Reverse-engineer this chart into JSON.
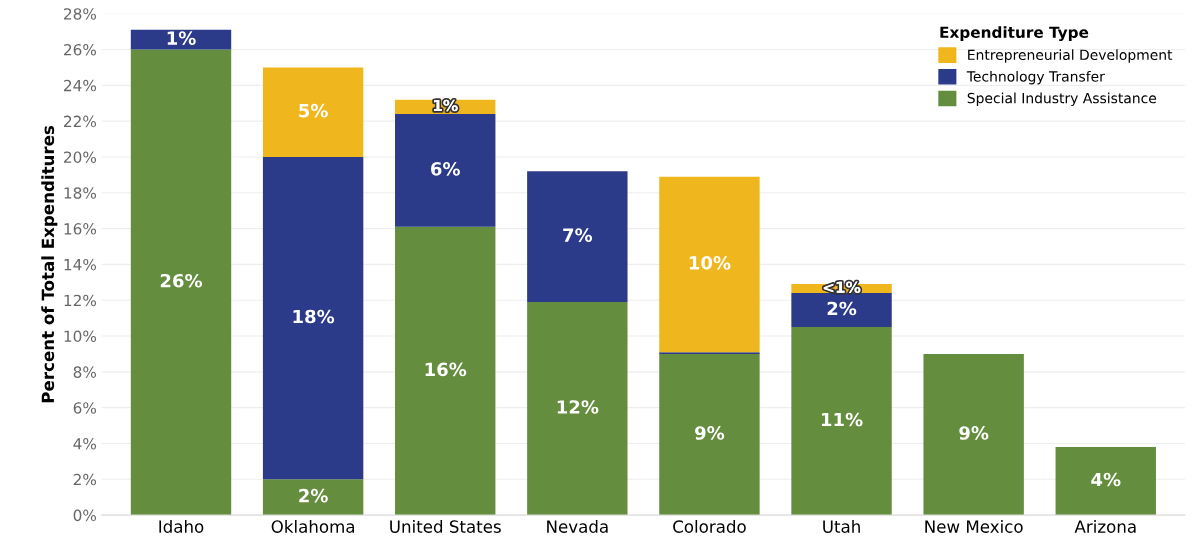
{
  "chart_data": {
    "type": "bar",
    "stacked": true,
    "ylabel": "Percent of Total Expenditures",
    "legend_title": "Expenditure Type",
    "legend": "top right",
    "grid": "y",
    "categories": [
      "Idaho",
      "Oklahoma",
      "United States",
      "Nevada",
      "Colorado",
      "Utah",
      "New Mexico",
      "Arizona"
    ],
    "series": [
      {
        "name": "Special Industry Assistance",
        "color": "#648d3e",
        "values": [
          26.0,
          2.0,
          16.1,
          11.9,
          9.0,
          10.5,
          9.0,
          3.8
        ],
        "value_labels": [
          "26%",
          "2%",
          "16%",
          "12%",
          "9%",
          "11%",
          "9%",
          "4%"
        ]
      },
      {
        "name": "Technology Transfer",
        "color": "#2c3a8a",
        "values": [
          1.1,
          18.0,
          6.3,
          7.3,
          0.1,
          1.9,
          null,
          null
        ],
        "value_labels": [
          "1%",
          "18%",
          "6%",
          "7%",
          null,
          "2%",
          null,
          null
        ]
      },
      {
        "name": "Entrepreneurial Development",
        "color": "#f0b61e",
        "values": [
          null,
          5.0,
          0.8,
          null,
          9.8,
          0.5,
          null,
          null
        ],
        "value_labels": [
          null,
          "5%",
          "1%",
          null,
          "10%",
          "<1%",
          null,
          null
        ]
      }
    ],
    "ylim": [
      0,
      28
    ],
    "yticks": [
      {
        "value": 0,
        "label": "0%"
      },
      {
        "value": 2,
        "label": "2%"
      },
      {
        "value": 4,
        "label": "4%"
      },
      {
        "value": 6,
        "label": "6%"
      },
      {
        "value": 8,
        "label": "8%"
      },
      {
        "value": 10,
        "label": "10%"
      },
      {
        "value": 12,
        "label": "12%"
      },
      {
        "value": 14,
        "label": "14%"
      },
      {
        "value": 16,
        "label": "16%"
      },
      {
        "value": 18,
        "label": "18%"
      },
      {
        "value": 20,
        "label": "20%"
      },
      {
        "value": 22,
        "label": "22%"
      },
      {
        "value": 24,
        "label": "24%"
      },
      {
        "value": 26,
        "label": "26%"
      },
      {
        "value": 28,
        "label": "28%"
      }
    ]
  }
}
